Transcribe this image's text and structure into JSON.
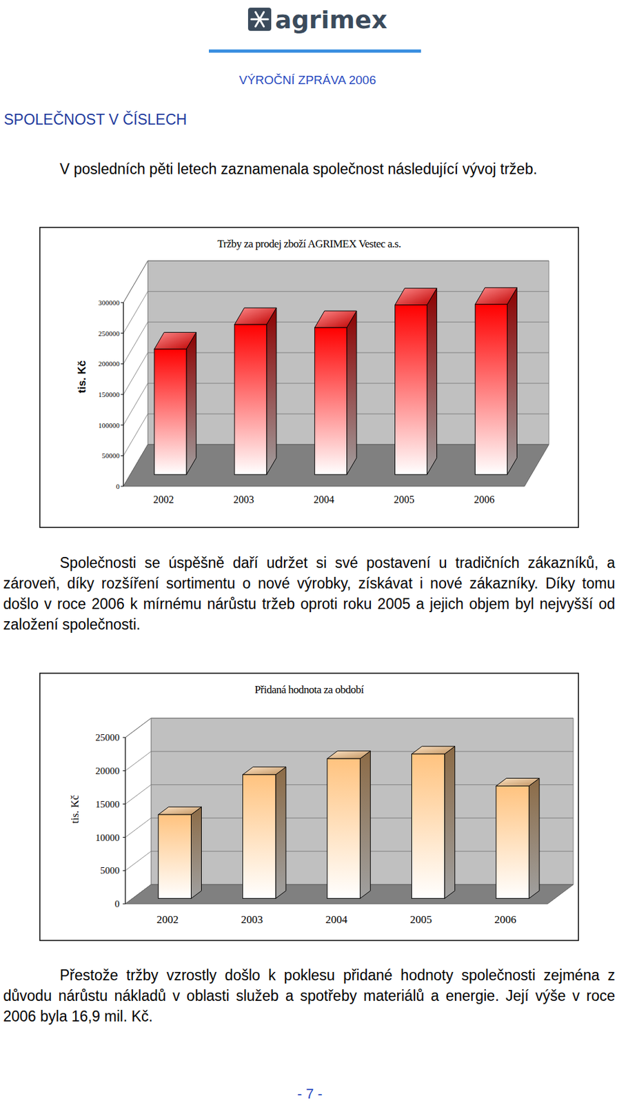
{
  "header": {
    "logo": "agrimex",
    "subtitle": "VÝROČNÍ ZPRÁVA 2006"
  },
  "heading": "SPOLEČNOST V ČÍSLECH",
  "paragraphs": [
    "V posledních pěti letech zaznamenala společnost následující vývoj tržeb.",
    "Společnosti se úspěšně daří udržet si své postavení u tradičních zákazníků, a zároveň, díky rozšíření sortimentu o nové výrobky, získávat i nové zákazníky. Díky tomu došlo v roce 2006 k mírnému nárůstu tržeb oproti roku 2005 a jejich objem byl nejvyšší od založení společnosti.",
    "Přestože tržby vzrostly došlo k poklesu přidané hodnoty společnosti zejména z důvodu nárůstu nákladů v oblasti služeb a spotřeby materiálů a energie. Její výše v roce 2006 byla 16,9 mil. Kč."
  ],
  "chart_data": [
    {
      "type": "bar",
      "title": "Tržby za prodej zboží AGRIMEX Vestec a.s.",
      "y_label": "tis. Kč",
      "categories": [
        "2002",
        "2003",
        "2004",
        "2005",
        "2006"
      ],
      "values": [
        205000,
        245000,
        240000,
        277000,
        278000
      ],
      "color": "#ff0000",
      "ylim": [
        0,
        300000
      ],
      "yticks": [
        0,
        50000,
        100000,
        150000,
        200000,
        250000,
        300000
      ],
      "grid": true
    },
    {
      "type": "bar",
      "title": "Přidaná hodnota za období",
      "y_label": "tis. Kč",
      "categories": [
        "2002",
        "2003",
        "2004",
        "2005",
        "2006"
      ],
      "values": [
        12600,
        18600,
        21000,
        21700,
        16900
      ],
      "color": "#ffc37f",
      "ylim": [
        0,
        25000
      ],
      "yticks": [
        0,
        5000,
        10000,
        15000,
        20000,
        25000
      ],
      "grid": true
    }
  ],
  "footer": "- 7 -"
}
